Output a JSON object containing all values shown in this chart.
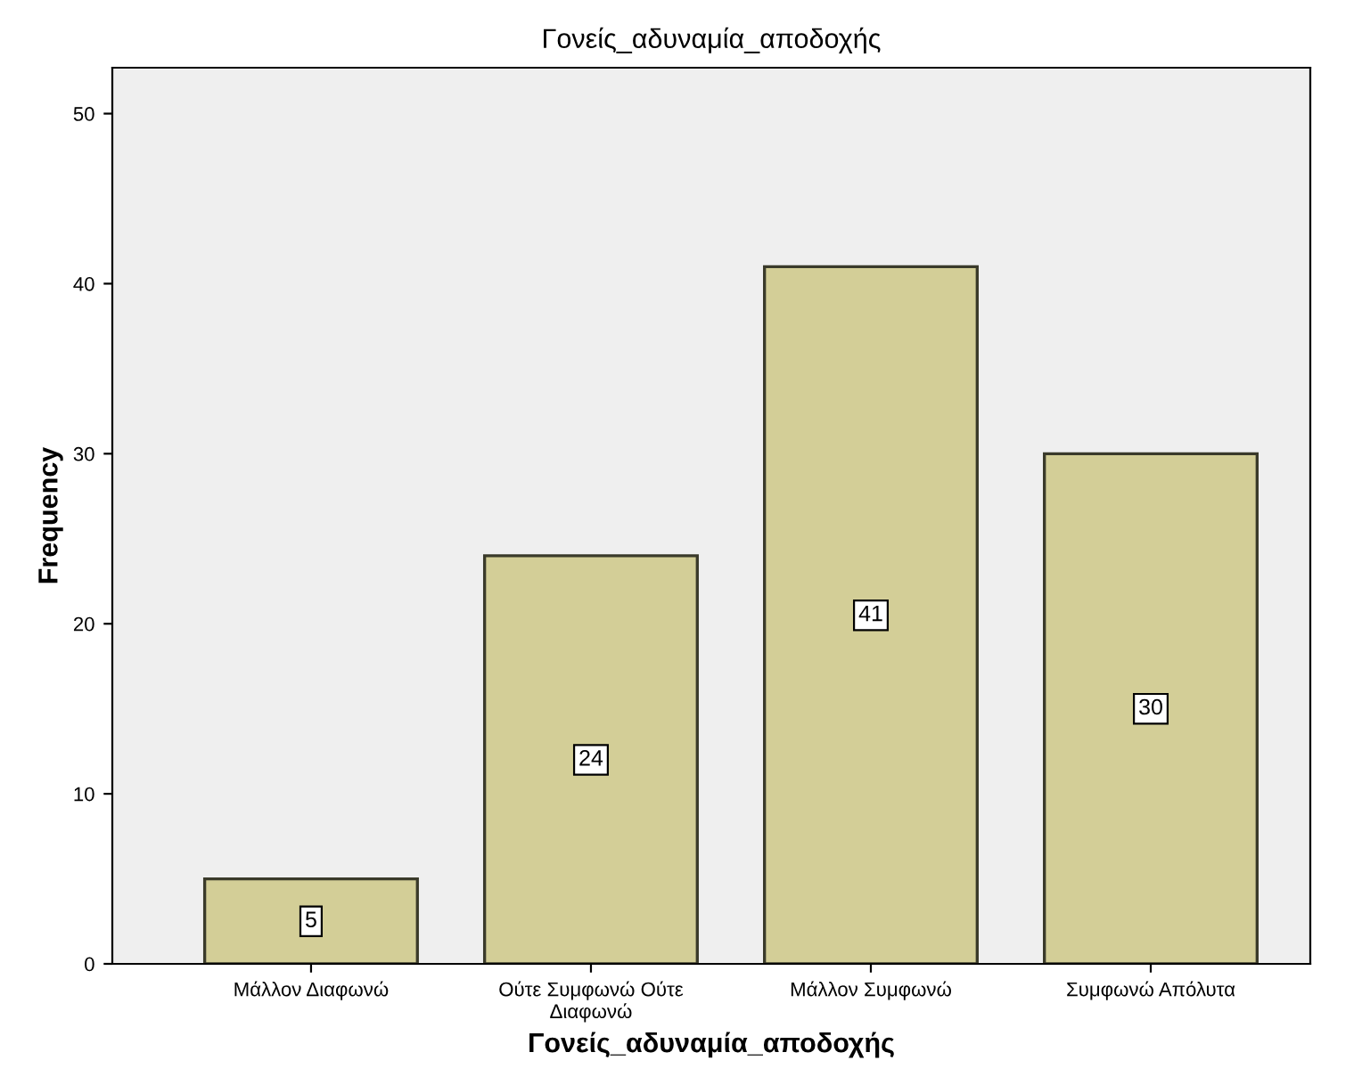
{
  "chart_data": {
    "type": "bar",
    "title": "Γονείς_αδυναμία_αποδοχής",
    "xlabel": "Γονείς_αδυναμία_αποδοχής",
    "ylabel": "Frequency",
    "categories": [
      "Μάλλον Διαφωνώ",
      "Ούτε Συμφωνώ Ούτε\nΔιαφωνώ",
      "Μάλλον Συμφωνώ",
      "Συμφωνώ Απόλυτα"
    ],
    "values": [
      5,
      24,
      41,
      30
    ],
    "color": "#d3ce97",
    "ylim": [
      0,
      52.7
    ],
    "yticks": [
      0,
      10,
      20,
      30,
      40,
      50
    ],
    "grid": false,
    "data_labels": true
  }
}
